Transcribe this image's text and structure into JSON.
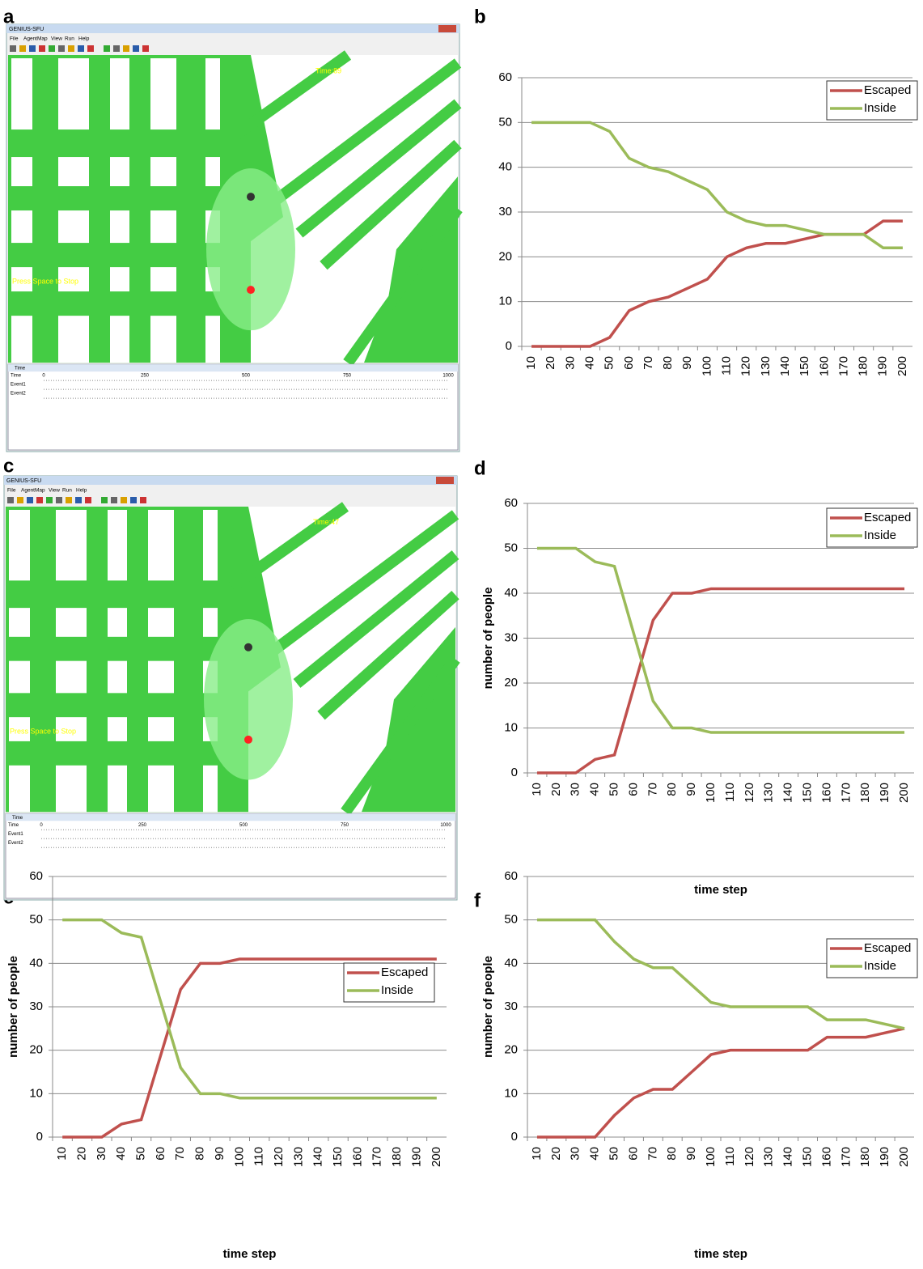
{
  "panel_labels": [
    "a",
    "b",
    "c",
    "d",
    "e",
    "f"
  ],
  "screenshots": [
    {
      "title": "GENIUS-SFU",
      "menu": [
        "File",
        "Agent",
        "Map",
        "View",
        "Run",
        "Help"
      ],
      "time_label": "Time:89",
      "hint": "Press Space to Stop",
      "time_window": {
        "title": "Time",
        "row_labels": [
          "Time",
          "Event1",
          "Event2"
        ],
        "scale": [
          "0",
          "250",
          "500",
          "750",
          "1000"
        ]
      }
    },
    {
      "title": "GENIUS-SFU",
      "menu": [
        "File",
        "Agent",
        "Map",
        "View",
        "Run",
        "Help"
      ],
      "time_label": "Time:47",
      "hint": "Press Space to Stop",
      "time_window": {
        "title": "Time",
        "row_labels": [
          "Time",
          "Event1",
          "Event2"
        ],
        "scale": [
          "0",
          "250",
          "500",
          "750",
          "1000"
        ]
      }
    }
  ],
  "chart_data": [
    {
      "type": "line",
      "categories": [
        10,
        20,
        30,
        40,
        50,
        60,
        70,
        80,
        90,
        100,
        110,
        120,
        130,
        140,
        150,
        160,
        170,
        180,
        190,
        200
      ],
      "series": [
        {
          "name": "Escaped",
          "color": "#c0504d",
          "values": [
            0,
            0,
            0,
            0,
            2,
            8,
            10,
            11,
            13,
            15,
            20,
            22,
            23,
            23,
            24,
            25,
            25,
            25,
            28,
            28
          ]
        },
        {
          "name": "Inside",
          "color": "#9bbb59",
          "values": [
            50,
            50,
            50,
            50,
            48,
            42,
            40,
            39,
            37,
            35,
            30,
            28,
            27,
            27,
            26,
            25,
            25,
            25,
            22,
            22
          ]
        }
      ],
      "ylim": [
        0,
        60
      ],
      "yticks": [
        0,
        10,
        20,
        30,
        40,
        50,
        60
      ],
      "grid": true,
      "legend": "top-right"
    },
    {
      "type": "line",
      "x_label": "time step",
      "y_label": "number of people",
      "categories": [
        10,
        20,
        30,
        40,
        50,
        60,
        70,
        80,
        90,
        100,
        110,
        120,
        130,
        140,
        150,
        160,
        170,
        180,
        190,
        200
      ],
      "series": [
        {
          "name": "Escaped",
          "color": "#c0504d",
          "values": [
            0,
            0,
            0,
            3,
            4,
            19,
            34,
            40,
            40,
            41,
            41,
            41,
            41,
            41,
            41,
            41,
            41,
            41,
            41,
            41
          ]
        },
        {
          "name": "Inside",
          "color": "#9bbb59",
          "values": [
            50,
            50,
            50,
            47,
            46,
            31,
            16,
            10,
            10,
            9,
            9,
            9,
            9,
            9,
            9,
            9,
            9,
            9,
            9,
            9
          ]
        }
      ],
      "ylim": [
        0,
        60
      ],
      "yticks": [
        0,
        10,
        20,
        30,
        40,
        50,
        60
      ],
      "grid": true,
      "legend": "top-right"
    },
    {
      "type": "line",
      "x_label": "time step",
      "y_label": "number of people",
      "categories": [
        10,
        20,
        30,
        40,
        50,
        60,
        70,
        80,
        90,
        100,
        110,
        120,
        130,
        140,
        150,
        160,
        170,
        180,
        190,
        200
      ],
      "series": [
        {
          "name": "Escaped",
          "color": "#c0504d",
          "values": [
            0,
            0,
            0,
            3,
            4,
            19,
            34,
            40,
            40,
            41,
            41,
            41,
            41,
            41,
            41,
            41,
            41,
            41,
            41,
            41
          ]
        },
        {
          "name": "Inside",
          "color": "#9bbb59",
          "values": [
            50,
            50,
            50,
            47,
            46,
            31,
            16,
            10,
            10,
            9,
            9,
            9,
            9,
            9,
            9,
            9,
            9,
            9,
            9,
            9
          ]
        }
      ],
      "ylim": [
        0,
        60
      ],
      "yticks": [
        0,
        10,
        20,
        30,
        40,
        50,
        60
      ],
      "grid": true,
      "legend": "top-right"
    },
    {
      "type": "line",
      "x_label": "time step",
      "y_label": "number of people",
      "categories": [
        10,
        20,
        30,
        40,
        50,
        60,
        70,
        80,
        90,
        100,
        110,
        120,
        130,
        140,
        150,
        160,
        170,
        180,
        190,
        200
      ],
      "series": [
        {
          "name": "Escaped",
          "color": "#c0504d",
          "values": [
            0,
            0,
            0,
            0,
            5,
            9,
            11,
            11,
            15,
            19,
            20,
            20,
            20,
            20,
            20,
            23,
            23,
            23,
            24,
            25
          ]
        },
        {
          "name": "Inside",
          "color": "#9bbb59",
          "values": [
            50,
            50,
            50,
            50,
            45,
            41,
            39,
            39,
            35,
            31,
            30,
            30,
            30,
            30,
            30,
            27,
            27,
            27,
            26,
            25
          ]
        }
      ],
      "ylim": [
        0,
        60
      ],
      "yticks": [
        0,
        10,
        20,
        30,
        40,
        50,
        60
      ],
      "grid": true,
      "legend": "top-right"
    }
  ]
}
